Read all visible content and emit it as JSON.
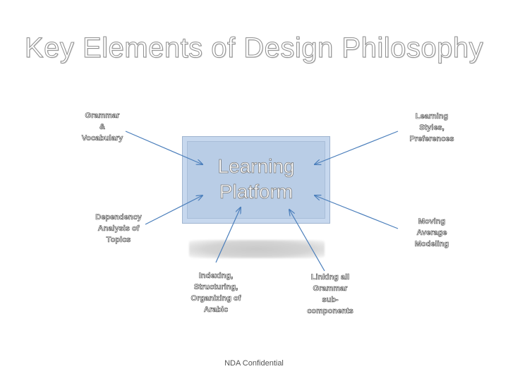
{
  "title": "Key Elements of Design Philosophy",
  "center": {
    "line1": "Learning",
    "line2": "Platform"
  },
  "nodes": [
    {
      "id": "grammar-vocabulary",
      "lines": [
        "Grammar",
        "&",
        "Vocabulary"
      ]
    },
    {
      "id": "learning-styles",
      "lines": [
        "Learning",
        "Styles,",
        "Preferences"
      ]
    },
    {
      "id": "dependency-analysis",
      "lines": [
        "Dependency",
        "Analysis of",
        "Topics"
      ]
    },
    {
      "id": "moving-average",
      "lines": [
        "Moving",
        "Average",
        "Modeling"
      ]
    },
    {
      "id": "indexing",
      "lines": [
        "Indexing,",
        "Structuring,",
        "Organizing of",
        "Arabic"
      ]
    },
    {
      "id": "linking-grammar",
      "lines": [
        "Linking all",
        "Grammar",
        "sub-",
        "components"
      ]
    }
  ],
  "footer": "NDA Confidential",
  "colors": {
    "arrow": "#4a7ebb",
    "box_fill": "#b9cde6"
  }
}
